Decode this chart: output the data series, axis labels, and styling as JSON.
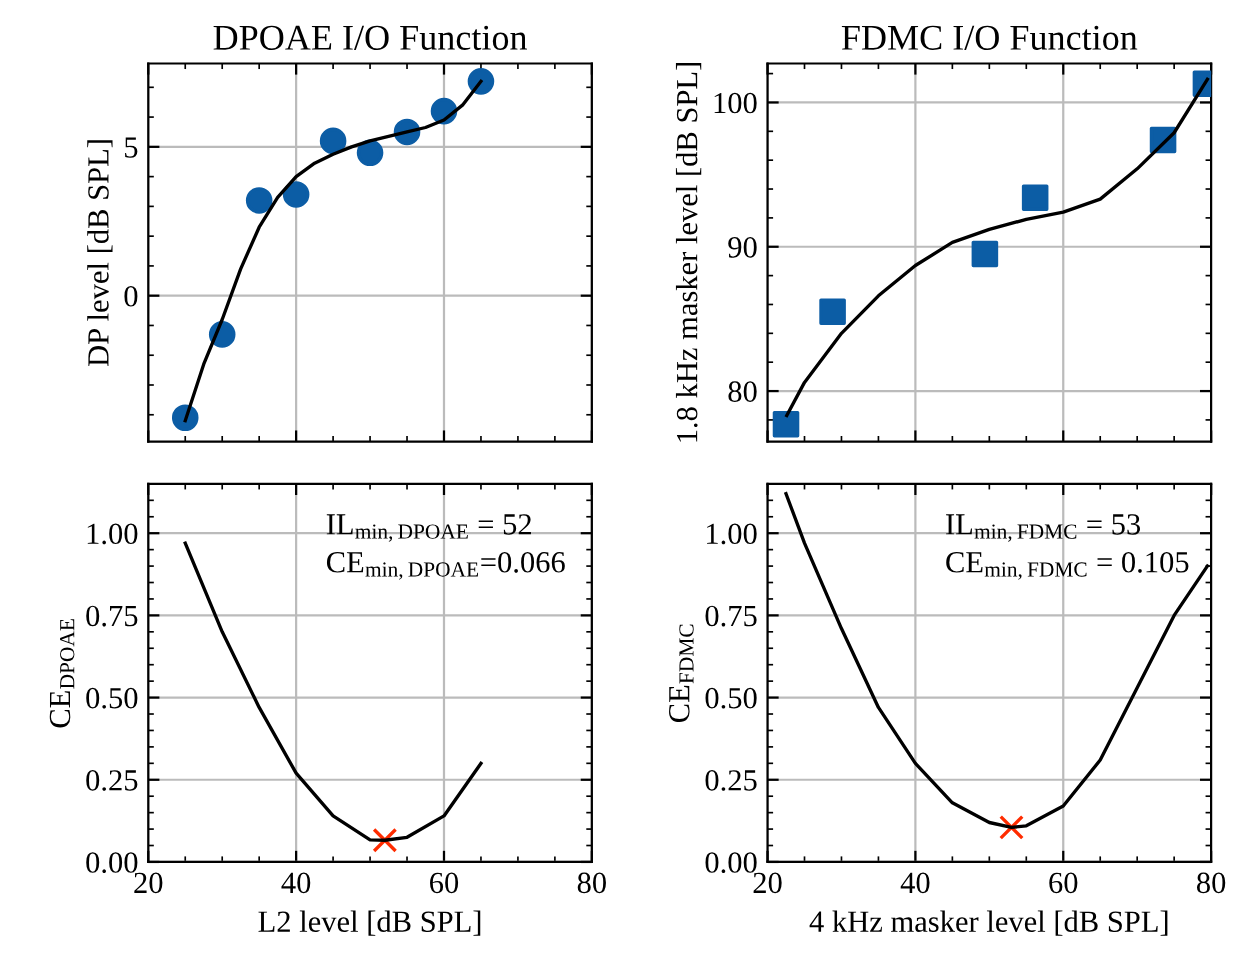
{
  "chart_data": [
    {
      "type": "line",
      "title": "DPOAE I/O Function",
      "ylabel": "DP level [dB SPL]",
      "xlim": [
        20,
        80
      ],
      "xticks": [
        20,
        40,
        60,
        80
      ],
      "ylim": [
        -4.9,
        7.8
      ],
      "yticks": [
        0,
        5
      ],
      "tick_labels": "y",
      "grid": true,
      "series": [
        {
          "type": "scatter",
          "marker": "circle",
          "color": "#0c5da5",
          "x": [
            25,
            30,
            35,
            40,
            45,
            50,
            55,
            60,
            65
          ],
          "values": [
            -4.1,
            -1.3,
            3.2,
            3.4,
            5.2,
            4.8,
            5.5,
            6.2,
            7.2
          ]
        },
        {
          "type": "line",
          "color": "#000000",
          "x": [
            25,
            27.5,
            30,
            32.5,
            35,
            37.5,
            40,
            42.5,
            45,
            47.5,
            50,
            52.5,
            55,
            57.5,
            60,
            62.5,
            65
          ],
          "values": [
            -4.2,
            -2.3,
            -0.8,
            0.9,
            2.3,
            3.3,
            4.0,
            4.45,
            4.75,
            5.0,
            5.2,
            5.35,
            5.5,
            5.65,
            5.9,
            6.4,
            7.2
          ]
        }
      ]
    },
    {
      "type": "line",
      "title": "FDMC I/O Function",
      "ylabel": "1.8 kHz masker level [dB SPL]",
      "xlim": [
        20,
        80
      ],
      "xticks": [
        20,
        40,
        60,
        80
      ],
      "ylim": [
        76.5,
        102.7
      ],
      "yticks": [
        80,
        90,
        100
      ],
      "tick_labels": "y",
      "grid": true,
      "series": [
        {
          "type": "scatter",
          "marker": "square",
          "color": "#0c5da5",
          "x": [
            22.5,
            28.8,
            49.4,
            56.2,
            73.5,
            79.3
          ],
          "values": [
            77.7,
            85.5,
            89.5,
            93.4,
            97.4,
            101.3
          ]
        },
        {
          "type": "line",
          "color": "#000000",
          "x": [
            22.6,
            25,
            30,
            35,
            40,
            45,
            50,
            55,
            60,
            65,
            70,
            75,
            79.5
          ],
          "values": [
            78.3,
            80.6,
            84.0,
            86.6,
            88.7,
            90.3,
            91.2,
            91.9,
            92.4,
            93.3,
            95.4,
            97.9,
            101.6
          ]
        }
      ]
    },
    {
      "type": "line",
      "xlabel": "L2 level [dB SPL]",
      "ylabel": "CE$_{DPOAE}$",
      "xlim": [
        20,
        80
      ],
      "xticks": [
        20,
        40,
        60,
        80
      ],
      "ylim": [
        0,
        1.15
      ],
      "yticks": [
        {
          "value": 0,
          "label": "0.00"
        },
        {
          "value": 0.25,
          "label": "0.25"
        },
        {
          "value": 0.5,
          "label": "0.50"
        },
        {
          "value": 0.75,
          "label": "0.75"
        },
        {
          "value": 1,
          "label": "1.00"
        }
      ],
      "grid": true,
      "annotations": [
        "IL$_{min,DPOAE}$ = 52",
        "CE$_{min,DPOAE}$=0.066"
      ],
      "series": [
        {
          "type": "line",
          "color": "#000000",
          "x": [
            25,
            30,
            35,
            40,
            45,
            50,
            52,
            55,
            60,
            65
          ],
          "values": [
            0.97,
            0.7,
            0.47,
            0.27,
            0.14,
            0.067,
            0.066,
            0.075,
            0.14,
            0.3
          ]
        },
        {
          "type": "scatter",
          "marker": "cross",
          "color": "#ff2c00",
          "x": [
            52
          ],
          "values": [
            0.066
          ]
        }
      ]
    },
    {
      "type": "line",
      "xlabel": "4 kHz masker level [dB SPL]",
      "ylabel": "CE$_{FDMC}$",
      "xlim": [
        20,
        80
      ],
      "xticks": [
        20,
        40,
        60,
        80
      ],
      "ylim": [
        0,
        1.15
      ],
      "yticks": [
        {
          "value": 0,
          "label": "0.00"
        },
        {
          "value": 0.25,
          "label": "0.25"
        },
        {
          "value": 0.5,
          "label": "0.50"
        },
        {
          "value": 0.75,
          "label": "0.75"
        },
        {
          "value": 1,
          "label": "1.00"
        }
      ],
      "grid": true,
      "annotations": [
        "IL$_{min,FDMC}$ = 53",
        "CE$_{min,FDMC}$ = 0.105"
      ],
      "series": [
        {
          "type": "line",
          "color": "#000000",
          "x": [
            22.5,
            25,
            30,
            35,
            40,
            45,
            50,
            53,
            55,
            60,
            65,
            70,
            75,
            79.5
          ],
          "values": [
            1.12,
            0.97,
            0.71,
            0.47,
            0.3,
            0.18,
            0.12,
            0.105,
            0.11,
            0.17,
            0.31,
            0.53,
            0.75,
            0.9
          ]
        },
        {
          "type": "scatter",
          "marker": "cross",
          "color": "#ff2c00",
          "x": [
            53
          ],
          "values": [
            0.105
          ]
        }
      ]
    }
  ]
}
